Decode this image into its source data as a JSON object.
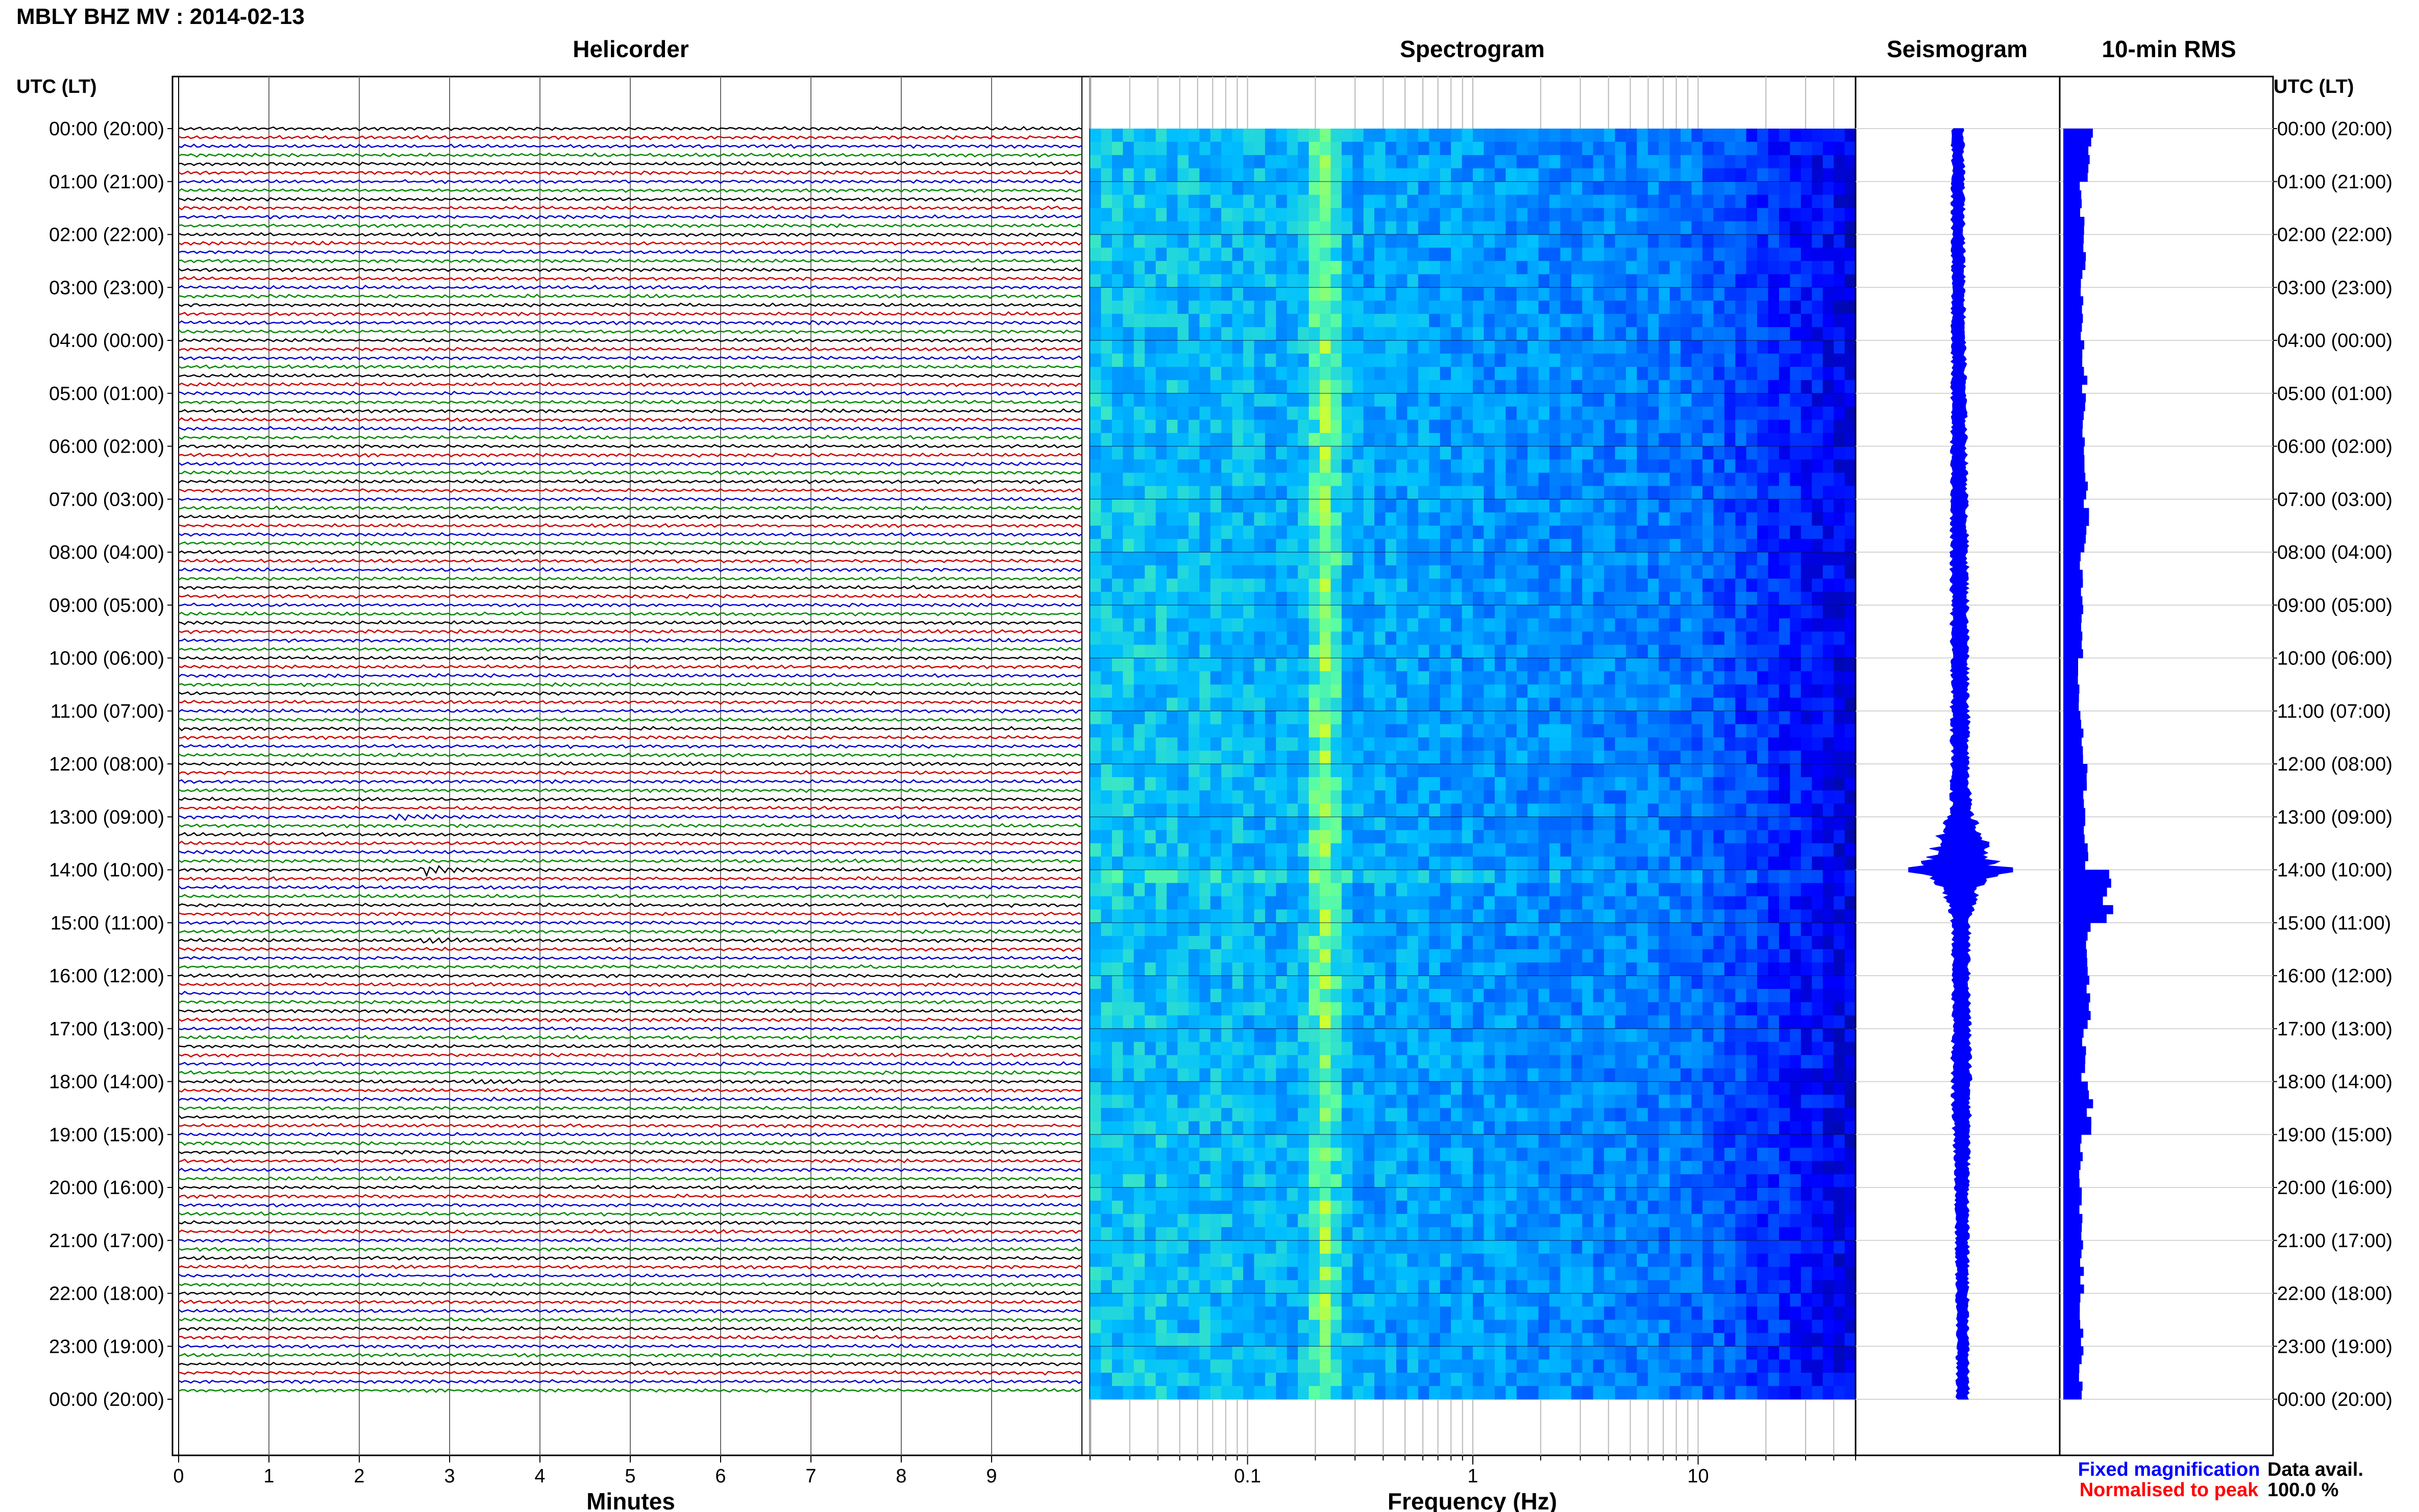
{
  "figure": {
    "title": "MBLY BHZ MV : 2014-02-13",
    "left_axis_title": "UTC (LT)",
    "right_axis_title": "UTC (LT)",
    "legend": {
      "fixed": "Fixed magnification",
      "normalised": "Normalised to peak",
      "fixed_color": "#0000ff",
      "normalised_color": "#ff0000"
    },
    "data_avail": {
      "label": "Data avail.",
      "value": "100.0 %"
    }
  },
  "time_labels": [
    "00:00 (20:00)",
    "01:00 (21:00)",
    "02:00 (22:00)",
    "03:00 (23:00)",
    "04:00 (00:00)",
    "05:00 (01:00)",
    "06:00 (02:00)",
    "07:00 (03:00)",
    "08:00 (04:00)",
    "09:00 (05:00)",
    "10:00 (06:00)",
    "11:00 (07:00)",
    "12:00 (08:00)",
    "13:00 (09:00)",
    "14:00 (10:00)",
    "15:00 (11:00)",
    "16:00 (12:00)",
    "17:00 (13:00)",
    "18:00 (14:00)",
    "19:00 (15:00)",
    "20:00 (16:00)",
    "21:00 (17:00)",
    "22:00 (18:00)",
    "23:00 (19:00)",
    "00:00 (20:00)"
  ],
  "chart_data": [
    {
      "type": "line",
      "title": "Helicorder",
      "xlabel": "Minutes",
      "x_ticks": [
        "0",
        "1",
        "2",
        "3",
        "4",
        "5",
        "6",
        "7",
        "8",
        "9"
      ],
      "xlim": [
        0,
        10
      ],
      "rows": 144,
      "row_minutes": 10,
      "trace_colors": [
        "#000000",
        "#cc0000",
        "#0000cc",
        "#008800"
      ],
      "grid": true,
      "events": [
        {
          "time_utc": "14:00",
          "minute": 2.75,
          "amplitude": 3.5
        },
        {
          "time_utc": "13:00",
          "minute": 2.5,
          "amplitude": 1.5
        },
        {
          "time_utc": "15:20",
          "minute": 2.8,
          "amplitude": 1.4
        },
        {
          "time_utc": "18:00",
          "minute": 3.3,
          "amplitude": 1.2
        },
        {
          "time_utc": "03:40",
          "minute": 7.0,
          "amplitude": 1.0
        }
      ]
    },
    {
      "type": "heatmap",
      "title": "Spectrogram",
      "xlabel": "Frequency (Hz)",
      "x_scale": "log",
      "x_ticks": [
        "0.1",
        "1",
        "10"
      ],
      "xlim": [
        0.02,
        50
      ],
      "peak_frequency_hz": 0.22,
      "colormap": [
        "#000c8c",
        "#0000ff",
        "#0066ff",
        "#00c0ff",
        "#5dffa0",
        "#ffff00"
      ]
    },
    {
      "type": "line",
      "title": "Seismogram",
      "color": "#0000ff",
      "envelope": [
        [
          0,
          0.4
        ],
        [
          4,
          0.45
        ],
        [
          7.2,
          0.55
        ],
        [
          12,
          0.6
        ],
        [
          12.9,
          0.7
        ],
        [
          14,
          2.6
        ],
        [
          14.4,
          1.1
        ],
        [
          15,
          0.6
        ],
        [
          16,
          0.55
        ],
        [
          18,
          0.65
        ],
        [
          19,
          0.55
        ],
        [
          20,
          0.45
        ],
        [
          22,
          0.4
        ],
        [
          24,
          0.4
        ]
      ]
    },
    {
      "type": "bar",
      "title": "10-min RMS",
      "color": "#0000ff",
      "hourly_levels": [
        0.6,
        0.42,
        0.45,
        0.42,
        0.48,
        0.45,
        0.5,
        0.52,
        0.4,
        0.4,
        0.35,
        0.4,
        0.48,
        0.52,
        1.0,
        0.55,
        0.55,
        0.45,
        0.6,
        0.4,
        0.4,
        0.42,
        0.4,
        0.4
      ],
      "peak": {
        "time_utc": "14:00",
        "value": 1.0
      }
    }
  ]
}
